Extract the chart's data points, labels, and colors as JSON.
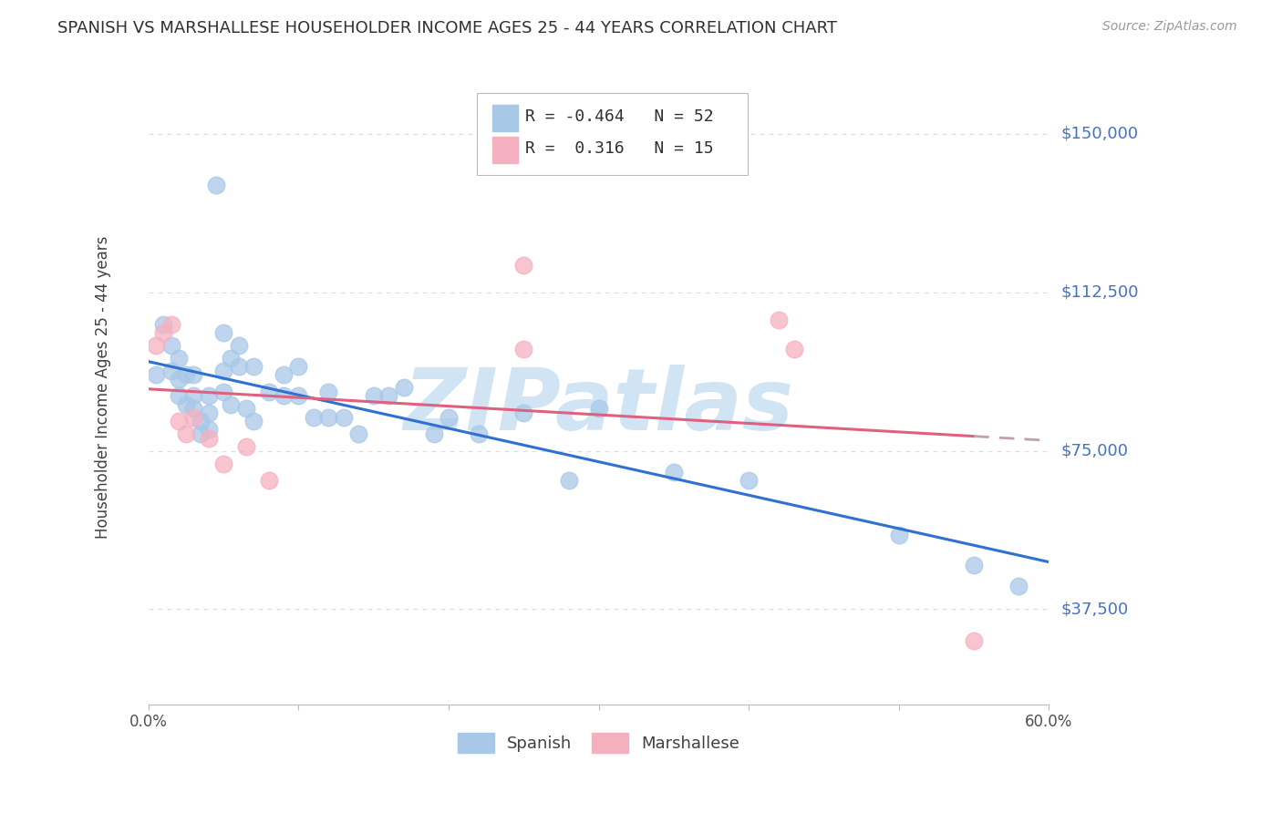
{
  "title": "SPANISH VS MARSHALLESE HOUSEHOLDER INCOME AGES 25 - 44 YEARS CORRELATION CHART",
  "source": "Source: ZipAtlas.com",
  "ylabel": "Householder Income Ages 25 - 44 years",
  "xlim": [
    0.0,
    0.6
  ],
  "ylim": [
    15000,
    165000
  ],
  "yticks": [
    37500,
    75000,
    112500,
    150000
  ],
  "ytick_labels": [
    "$37,500",
    "$75,000",
    "$112,500",
    "$150,000"
  ],
  "xticks": [
    0.0,
    0.1,
    0.2,
    0.3,
    0.4,
    0.5,
    0.6
  ],
  "xtick_labels": [
    "0.0%",
    "",
    "",
    "",
    "",
    "",
    "60.0%"
  ],
  "spanish_x": [
    0.005,
    0.01,
    0.015,
    0.015,
    0.02,
    0.02,
    0.02,
    0.025,
    0.025,
    0.03,
    0.03,
    0.03,
    0.035,
    0.035,
    0.04,
    0.04,
    0.04,
    0.045,
    0.05,
    0.05,
    0.05,
    0.055,
    0.055,
    0.06,
    0.06,
    0.065,
    0.07,
    0.07,
    0.08,
    0.09,
    0.09,
    0.1,
    0.1,
    0.11,
    0.12,
    0.12,
    0.13,
    0.14,
    0.15,
    0.16,
    0.17,
    0.19,
    0.2,
    0.22,
    0.25,
    0.28,
    0.3,
    0.35,
    0.4,
    0.5,
    0.55,
    0.58
  ],
  "spanish_y": [
    93000,
    105000,
    100000,
    94000,
    97000,
    92000,
    88000,
    93000,
    86000,
    93000,
    88000,
    85000,
    82000,
    79000,
    88000,
    84000,
    80000,
    138000,
    103000,
    94000,
    89000,
    97000,
    86000,
    100000,
    95000,
    85000,
    95000,
    82000,
    89000,
    93000,
    88000,
    95000,
    88000,
    83000,
    89000,
    83000,
    83000,
    79000,
    88000,
    88000,
    90000,
    79000,
    83000,
    79000,
    84000,
    68000,
    85000,
    70000,
    68000,
    55000,
    48000,
    43000
  ],
  "marshallese_x": [
    0.005,
    0.01,
    0.015,
    0.02,
    0.025,
    0.03,
    0.04,
    0.05,
    0.065,
    0.08,
    0.25,
    0.25,
    0.42,
    0.43,
    0.55
  ],
  "marshallese_y": [
    100000,
    103000,
    105000,
    82000,
    79000,
    83000,
    78000,
    72000,
    76000,
    68000,
    119000,
    99000,
    106000,
    99000,
    30000
  ],
  "spanish_R": -0.464,
  "spanish_N": 52,
  "marshallese_R": 0.316,
  "marshallese_N": 15,
  "spanish_color": "#a8c8e8",
  "marshallese_color": "#f5b0c0",
  "spanish_line_color": "#3070d0",
  "marshallese_line_color": "#e06080",
  "marshallese_dash_color": "#c0a0b0",
  "watermark_text": "ZIPatlas",
  "watermark_color": "#d0e4f4",
  "background_color": "#ffffff",
  "grid_color": "#dddddd",
  "title_color": "#303030",
  "ylabel_color": "#404040",
  "ytick_color": "#4472c4",
  "source_color": "#999999",
  "legend_box_color": "#cccccc"
}
